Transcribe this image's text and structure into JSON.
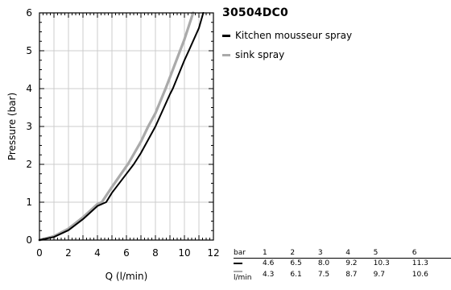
{
  "chart_data": {
    "type": "line",
    "title": "30504DC0",
    "xlabel": "Q (l/min)",
    "ylabel": "Pressure (bar)",
    "xlim": [
      0,
      12
    ],
    "ylim": [
      0,
      6
    ],
    "xticks": [
      "0",
      "2",
      "4",
      "6",
      "8",
      "10",
      "12"
    ],
    "yticks": [
      "0",
      "1",
      "2",
      "3",
      "4",
      "5",
      "6"
    ],
    "grid": true,
    "legend_position": "right",
    "series": [
      {
        "name": "Kitchen mousseur spray",
        "color": "#000000",
        "x": [
          0,
          1,
          2,
          3,
          4,
          4.6,
          5,
          6,
          6.5,
          7,
          8,
          9,
          9.2,
          10,
          10.3,
          11,
          11.3
        ],
        "y": [
          0,
          0.08,
          0.26,
          0.55,
          0.9,
          1.0,
          1.25,
          1.75,
          2.0,
          2.3,
          3.0,
          3.85,
          4.0,
          4.75,
          5.0,
          5.6,
          6.0
        ]
      },
      {
        "name": "sink spray",
        "color": "#aaaaaa",
        "x": [
          0,
          1,
          2,
          3,
          4,
          4.3,
          5,
          6,
          6.1,
          7,
          7.5,
          8,
          8.7,
          9,
          9.7,
          10,
          10.6
        ],
        "y": [
          0,
          0.1,
          0.3,
          0.6,
          0.95,
          1.0,
          1.4,
          1.95,
          2.0,
          2.6,
          3.0,
          3.35,
          4.0,
          4.3,
          5.0,
          5.3,
          6.0
        ]
      }
    ]
  },
  "flow_table": {
    "header_label": "bar",
    "unit_label": "l/min",
    "pressures": [
      "1",
      "2",
      "3",
      "4",
      "5",
      "6"
    ],
    "rows": [
      {
        "color": "#000000",
        "values": [
          "4.6",
          "6.5",
          "8.0",
          "9.2",
          "10.3",
          "11.3"
        ]
      },
      {
        "color": "#aaaaaa",
        "values": [
          "4.3",
          "6.1",
          "7.5",
          "8.7",
          "9.7",
          "10.6"
        ]
      }
    ]
  }
}
